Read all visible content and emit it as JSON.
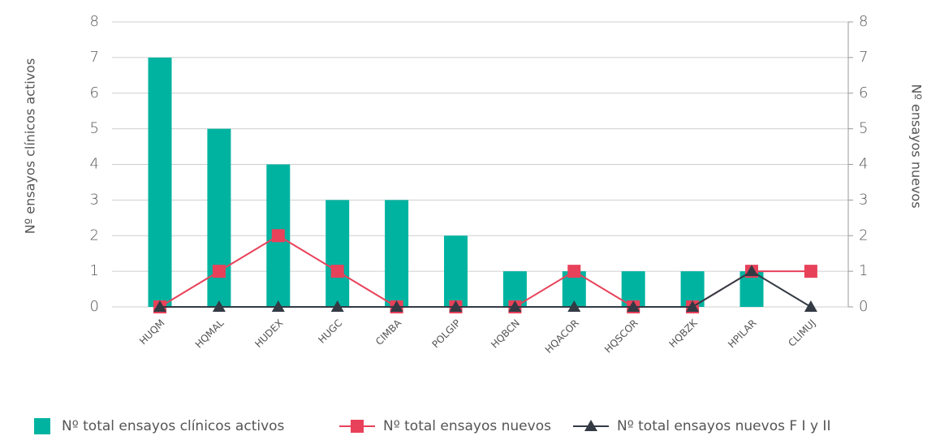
{
  "chart_data": {
    "type": "bar_line",
    "categories": [
      "HUQM",
      "HQMAL",
      "HUDEX",
      "HUGC",
      "CIMBA",
      "POLGIP",
      "HQBCN",
      "HQACOR",
      "HQSCOR",
      "HQBZK",
      "HPILAR",
      "CLIMUJ"
    ],
    "series": [
      {
        "name": "Nº total ensayos clínicos activos",
        "type": "bar",
        "color": "#00b3a1",
        "values": [
          7,
          5,
          4,
          3,
          3,
          2,
          1,
          1,
          1,
          1,
          1,
          0
        ]
      },
      {
        "name": "Nº total ensayos nuevos",
        "type": "line",
        "marker": "square",
        "axis": "y2",
        "color": "#e8415a",
        "values": [
          0,
          1,
          2,
          1,
          0,
          0,
          0,
          1,
          0,
          0,
          1,
          1
        ]
      },
      {
        "name": "Nº total ensayos nuevos F I y II",
        "type": "line",
        "marker": "triangle",
        "axis": "y2",
        "color": "#333a44",
        "values": [
          0,
          0,
          0,
          0,
          0,
          0,
          0,
          0,
          0,
          0,
          1,
          0
        ]
      }
    ],
    "ylabel": "Nº ensayos clínicos activos",
    "y2label": "Nº ensayos nuevos",
    "ylim": [
      0,
      8
    ],
    "yticks": [
      0,
      1,
      2,
      3,
      4,
      5,
      6,
      7,
      8
    ],
    "y2lim": [
      0,
      8
    ],
    "y2ticks": [
      0,
      1,
      2,
      3,
      4,
      5,
      6,
      7,
      8
    ],
    "grid": true,
    "legend": "bottom"
  }
}
